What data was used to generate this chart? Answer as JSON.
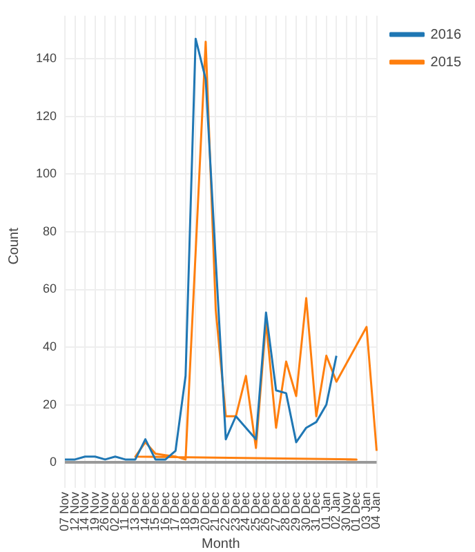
{
  "chart_data": {
    "type": "line",
    "xlabel": "Month",
    "ylabel": "Count",
    "categories": [
      "07 Nov",
      "12 Nov",
      "14 Nov",
      "19 Nov",
      "26 Nov",
      "02 Dec",
      "11 Dec",
      "13 Dec",
      "14 Dec",
      "15 Dec",
      "16 Dec",
      "17 Dec",
      "18 Dec",
      "19 Dec",
      "20 Dec",
      "21 Dec",
      "22 Dec",
      "23 Dec",
      "24 Dec",
      "25 Dec",
      "26 Dec",
      "27 Dec",
      "28 Dec",
      "29 Dec",
      "30 Dec",
      "31 Dec",
      "01 Jan",
      "02 Jan",
      "30 Nov",
      "01 Dec",
      "03 Jan",
      "04 Jan"
    ],
    "series": [
      {
        "name": "2016",
        "color": "#1f77b4",
        "x": [
          "07 Nov",
          "12 Nov",
          "14 Nov",
          "19 Nov",
          "26 Nov",
          "02 Dec",
          "11 Dec",
          "13 Dec",
          "14 Dec",
          "15 Dec",
          "16 Dec",
          "17 Dec",
          "18 Dec",
          "19 Dec",
          "20 Dec",
          "21 Dec",
          "22 Dec",
          "23 Dec",
          "24 Dec",
          "25 Dec",
          "26 Dec",
          "27 Dec",
          "28 Dec",
          "29 Dec",
          "30 Dec",
          "31 Dec",
          "01 Jan",
          "02 Jan"
        ],
        "values": [
          1,
          1,
          2,
          2,
          1,
          2,
          1,
          1,
          8,
          1,
          1,
          4,
          30,
          147,
          133,
          70,
          8,
          16,
          12,
          8,
          52,
          25,
          24,
          7,
          12,
          14,
          20,
          37
        ]
      },
      {
        "name": "2015",
        "color": "#ff7f0e",
        "x": [
          "30 Nov",
          "01 Dec",
          "13 Dec",
          "14 Dec",
          "15 Dec",
          "16 Dec",
          "17 Dec",
          "18 Dec",
          "19 Dec",
          "20 Dec",
          "21 Dec",
          "22 Dec",
          "23 Dec",
          "24 Dec",
          "25 Dec",
          "26 Dec",
          "27 Dec",
          "28 Dec",
          "29 Dec",
          "30 Dec",
          "31 Dec",
          "01 Jan",
          "02 Jan",
          "03 Jan",
          "04 Jan"
        ],
        "values": [
          1,
          1,
          2,
          7,
          3,
          2.5,
          2,
          1,
          73,
          146,
          53,
          16,
          16,
          30,
          5,
          49,
          12,
          35,
          23,
          57,
          16,
          37,
          28,
          47,
          4
        ]
      }
    ],
    "ylim": [
      -5,
      155
    ],
    "yticks": [
      0,
      20,
      40,
      60,
      80,
      100,
      120,
      140
    ],
    "grid": true,
    "legend": "top right",
    "marker": "none",
    "line_style": "solid"
  }
}
